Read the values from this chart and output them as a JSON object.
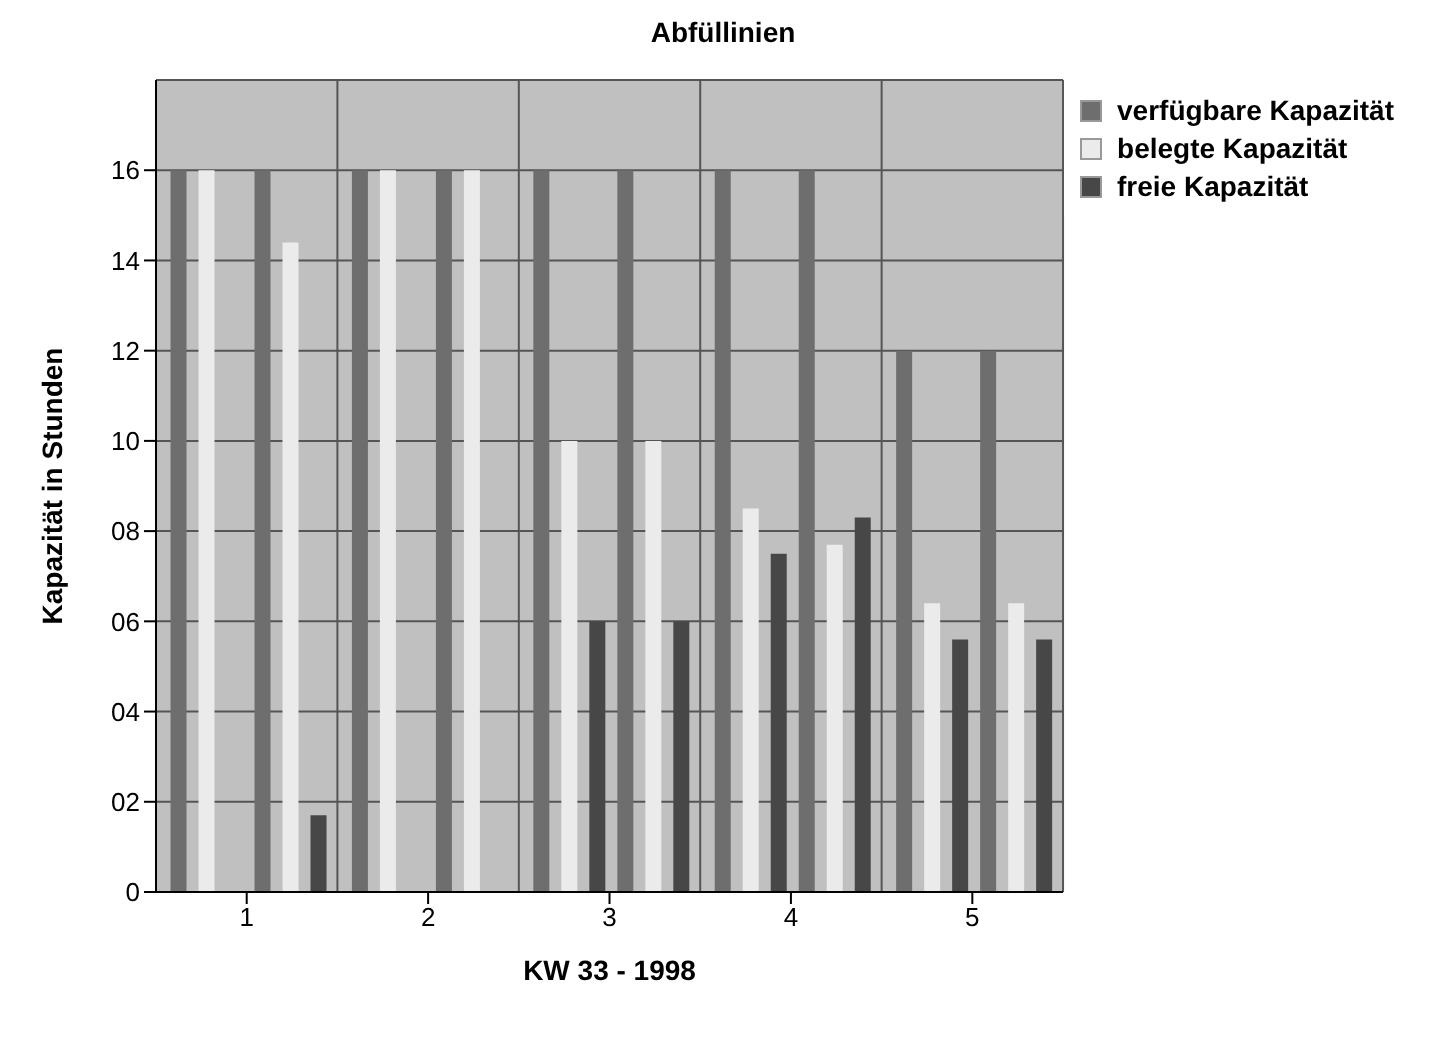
{
  "chart_data": {
    "type": "bar",
    "title": "Abfüllinien",
    "xlabel": "KW 33 - 1998",
    "ylabel": "Kapazität in Stunden",
    "categories": [
      "1",
      "2",
      "3",
      "4",
      "5"
    ],
    "series": [
      {
        "name": "verfügbare Kapazität",
        "color": "#6e6e6e",
        "values": [
          16,
          16,
          16,
          16,
          12
        ]
      },
      {
        "name": "belegte Kapazität",
        "color": "#ebebeb",
        "values": [
          16,
          16,
          10,
          8.5,
          6.4
        ]
      },
      {
        "name": "freie Kapazität",
        "color": "#474747",
        "values": [
          0,
          0,
          6,
          7.5,
          5.6
        ]
      },
      {
        "color": "#6e6e6e",
        "values": [
          16,
          16,
          16,
          16,
          12
        ]
      },
      {
        "color": "#ebebeb",
        "values": [
          14.4,
          16,
          10,
          7.7,
          6.4
        ]
      },
      {
        "color": "#474747",
        "values": [
          1.7,
          0,
          6,
          8.3,
          5.6
        ]
      }
    ],
    "ylim": [
      0,
      18
    ],
    "yticks": [
      0,
      {
        "value": 2,
        "label": "02"
      },
      {
        "value": 4,
        "label": "04"
      },
      {
        "value": 6,
        "label": "06"
      },
      {
        "value": 8,
        "label": "08"
      },
      10,
      12,
      14,
      16
    ],
    "grid": true,
    "legend": "top right"
  }
}
